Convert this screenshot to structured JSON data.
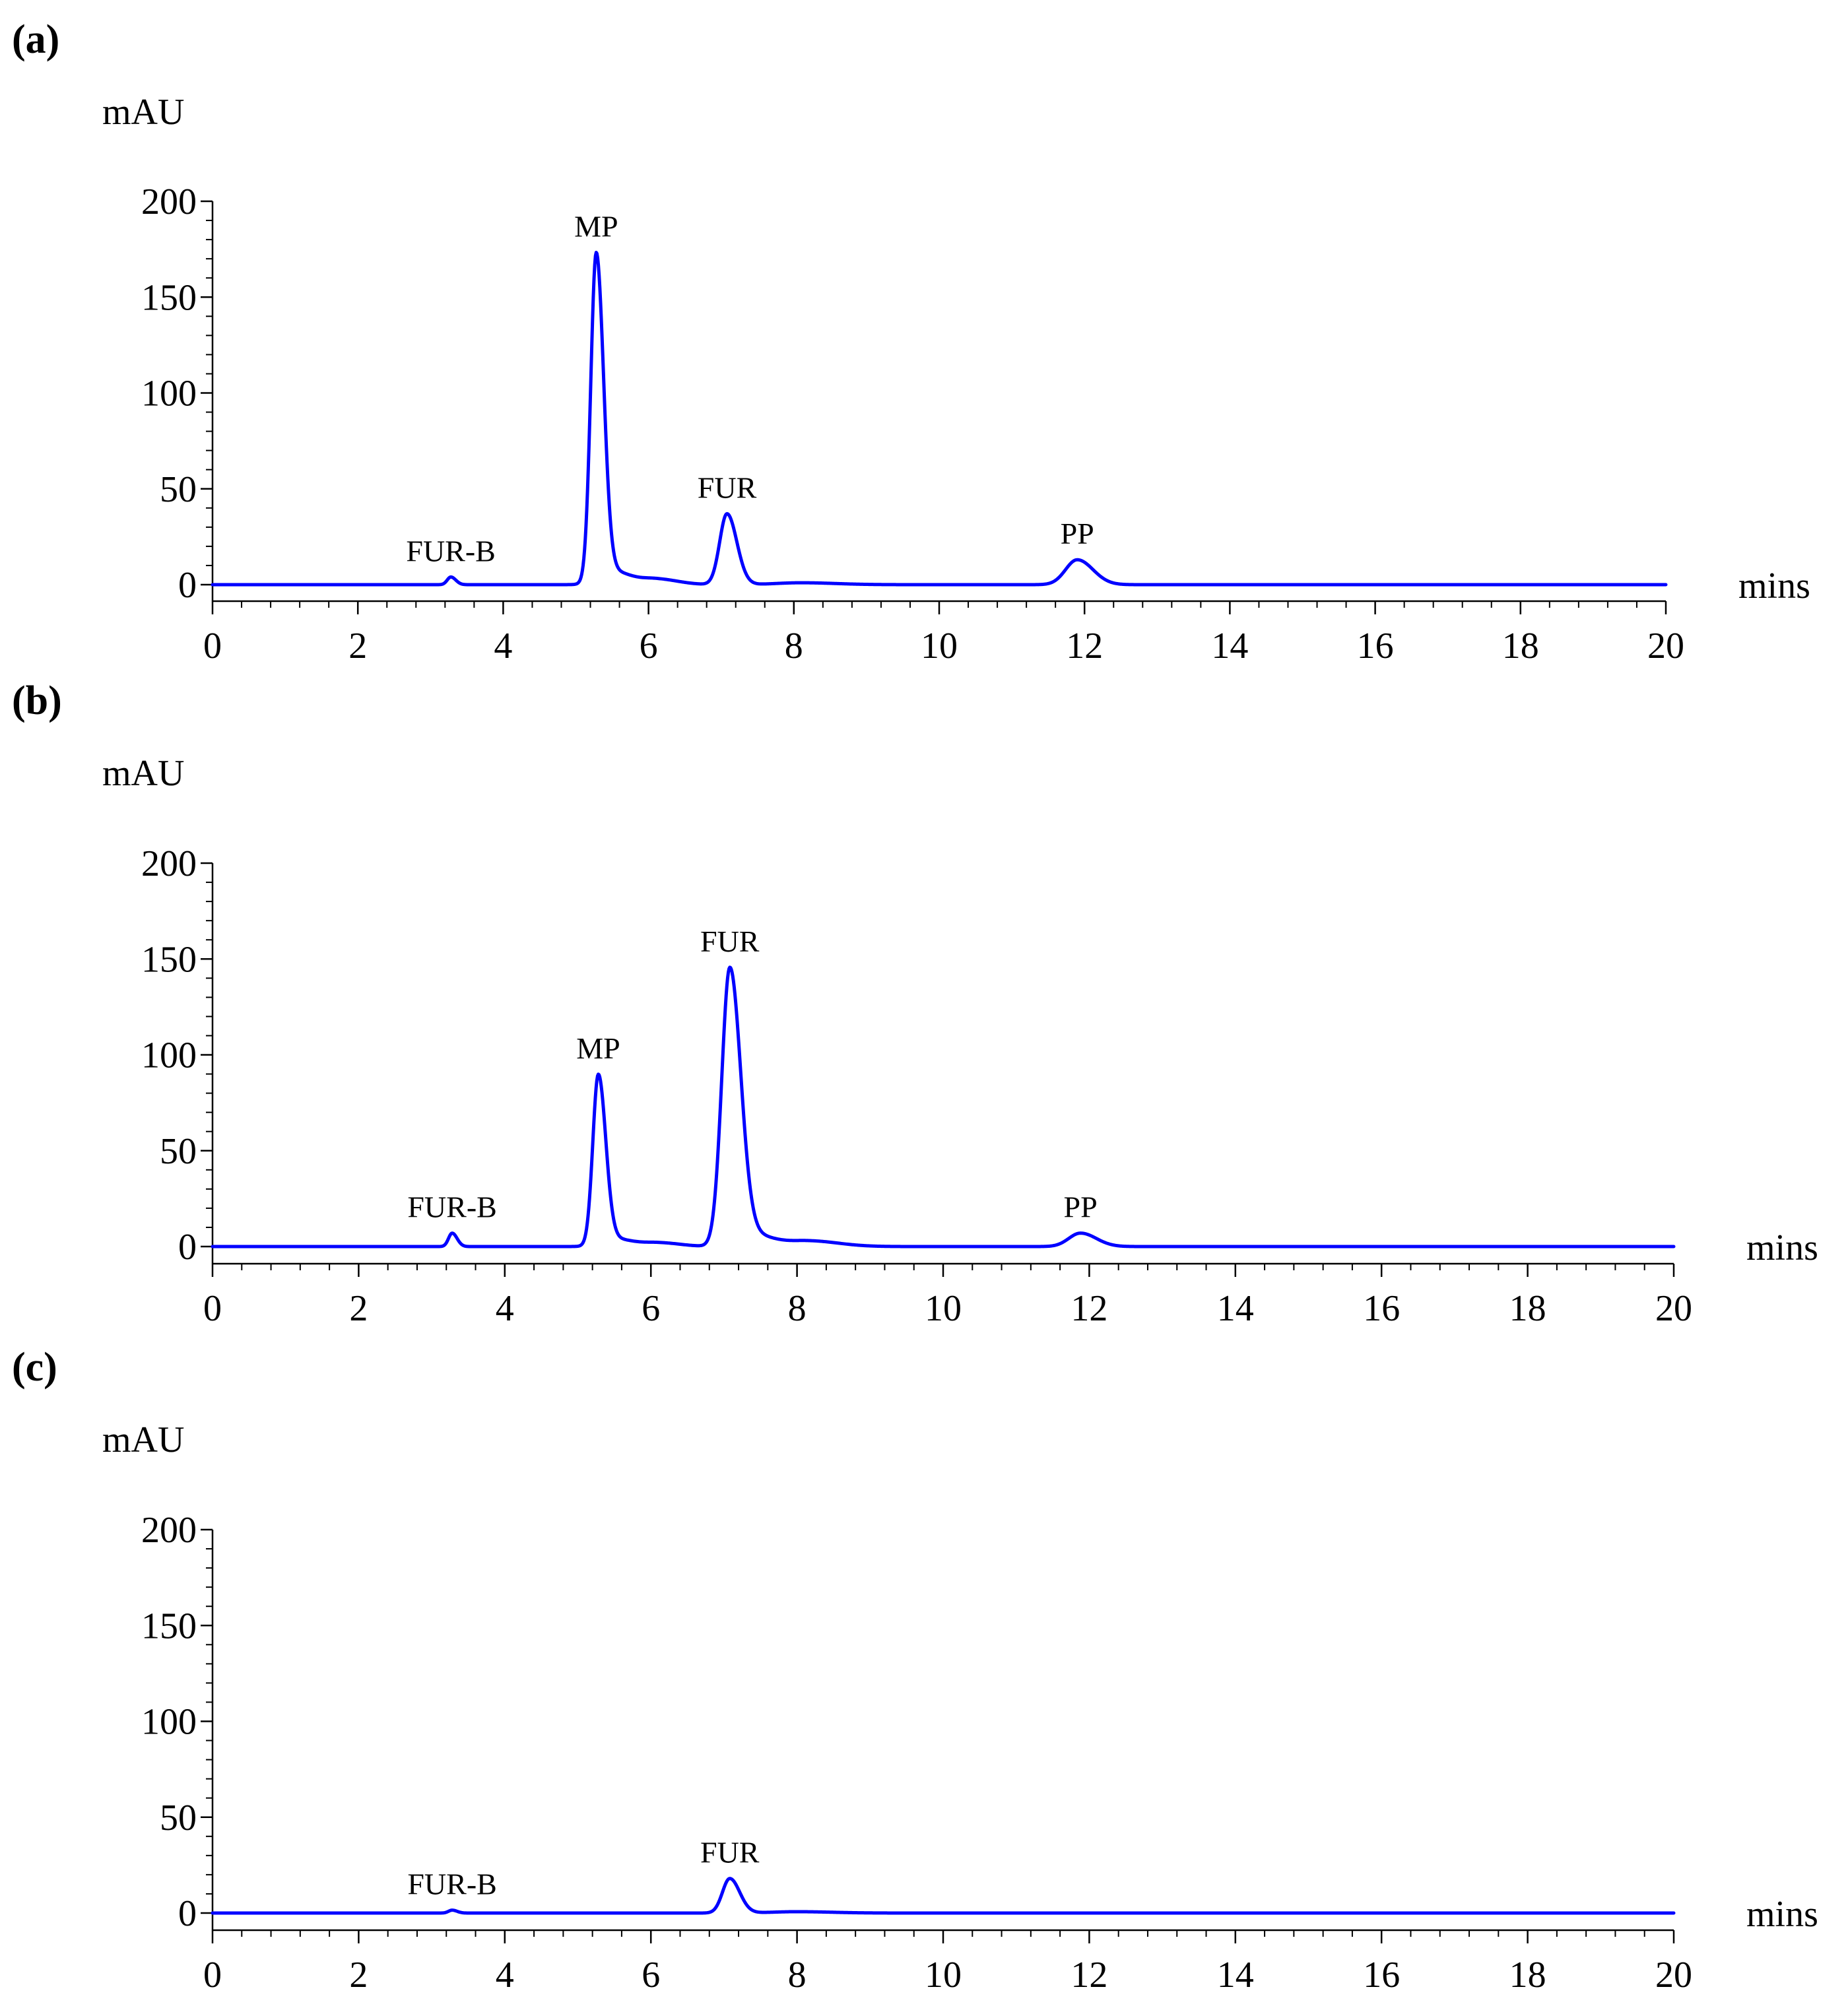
{
  "colors": {
    "trace": "#0000ff",
    "axis": "#000000"
  },
  "chart_data": [
    {
      "type": "line",
      "panel": "(a)",
      "ylabel": "mAU",
      "xlabel": "mins",
      "xlim": [
        0,
        20
      ],
      "ylim": [
        -8,
        200
      ],
      "xticks": [
        0,
        2,
        4,
        6,
        8,
        10,
        12,
        14,
        16,
        18,
        20
      ],
      "yticks": [
        0,
        50,
        100,
        150,
        200
      ],
      "peaks": [
        {
          "label": "FUR-B",
          "rt": 3.28,
          "height": 4,
          "width": 0.05
        },
        {
          "label": "MP",
          "rt": 5.28,
          "height": 170,
          "width": 0.075
        },
        {
          "label": "FUR",
          "rt": 7.08,
          "height": 37,
          "width": 0.1
        },
        {
          "label": "PP",
          "rt": 11.9,
          "height": 13,
          "width": 0.16
        }
      ],
      "minor_bumps": [
        {
          "rt": 5.5,
          "height": 7,
          "width": 0.18
        },
        {
          "rt": 6.1,
          "height": 3,
          "width": 0.22
        },
        {
          "rt": 8.1,
          "height": 1,
          "width": 0.35
        }
      ]
    },
    {
      "type": "line",
      "panel": "(b)",
      "ylabel": "mAU",
      "xlabel": "mins",
      "xlim": [
        0,
        20
      ],
      "ylim": [
        -8,
        200
      ],
      "xticks": [
        0,
        2,
        4,
        6,
        8,
        10,
        12,
        14,
        16,
        18,
        20
      ],
      "yticks": [
        0,
        50,
        100,
        150,
        200
      ],
      "peaks": [
        {
          "label": "FUR-B",
          "rt": 3.28,
          "height": 7,
          "width": 0.05
        },
        {
          "label": "MP",
          "rt": 5.28,
          "height": 88,
          "width": 0.075
        },
        {
          "label": "FUR",
          "rt": 7.08,
          "height": 144,
          "width": 0.11
        },
        {
          "label": "PP",
          "rt": 11.88,
          "height": 7,
          "width": 0.16
        }
      ],
      "minor_bumps": [
        {
          "rt": 5.5,
          "height": 4,
          "width": 0.18
        },
        {
          "rt": 6.1,
          "height": 2,
          "width": 0.22
        },
        {
          "rt": 7.4,
          "height": 6,
          "width": 0.2
        },
        {
          "rt": 8.15,
          "height": 3,
          "width": 0.3
        }
      ]
    },
    {
      "type": "line",
      "panel": "(c)",
      "ylabel": "mAU",
      "xlabel": "mins",
      "xlim": [
        0,
        20
      ],
      "ylim": [
        -8,
        200
      ],
      "xticks": [
        0,
        2,
        4,
        6,
        8,
        10,
        12,
        14,
        16,
        18,
        20
      ],
      "yticks": [
        0,
        50,
        100,
        150,
        200
      ],
      "peaks": [
        {
          "label": "FUR-B",
          "rt": 3.28,
          "height": 1.5,
          "width": 0.05
        },
        {
          "label": "FUR",
          "rt": 7.08,
          "height": 18,
          "width": 0.1
        }
      ],
      "minor_bumps": [
        {
          "rt": 8.0,
          "height": 0.7,
          "width": 0.35
        }
      ]
    }
  ]
}
